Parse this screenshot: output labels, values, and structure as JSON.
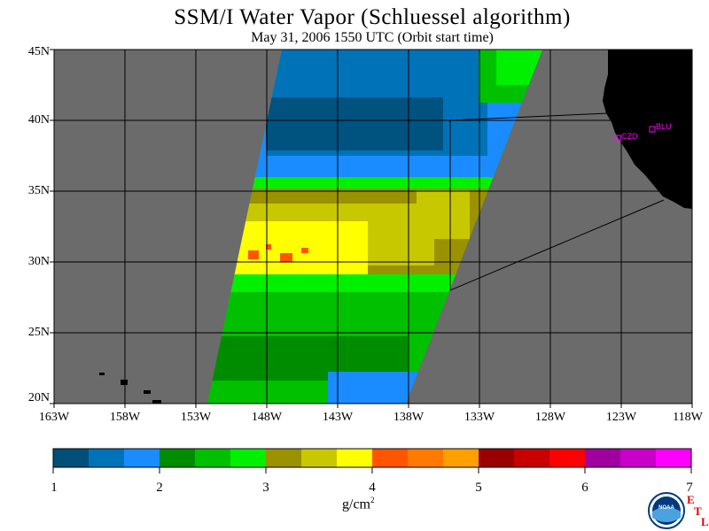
{
  "title": "SSM/I Water Vapor (Schluessel algorithm)",
  "subtitle": "May 31, 2006  1550 UTC  (Orbit start time)",
  "lat_labels": [
    "45N",
    "40N",
    "35N",
    "30N",
    "25N",
    "20N"
  ],
  "lon_labels": [
    "163W",
    "158W",
    "153W",
    "148W",
    "143W",
    "138W",
    "133W",
    "128W",
    "123W",
    "118W"
  ],
  "stations": [
    "CZD",
    "BLU"
  ],
  "colorbar": {
    "ticks": [
      "1",
      "2",
      "3",
      "4",
      "5",
      "6",
      "7"
    ],
    "unit": "g/cm",
    "unit_sup": "2",
    "colors": [
      "#004f79",
      "#0072b8",
      "#1a8cff",
      "#008c00",
      "#00c000",
      "#00f000",
      "#9a9200",
      "#c8c800",
      "#ffff00",
      "#ff5500",
      "#ff7a00",
      "#ffa000",
      "#9a0000",
      "#c80000",
      "#ff0000",
      "#a000a0",
      "#c800c8",
      "#ff00ff"
    ]
  },
  "logo_text": "NOAA",
  "etl_letters": [
    "E",
    "T",
    "L"
  ]
}
